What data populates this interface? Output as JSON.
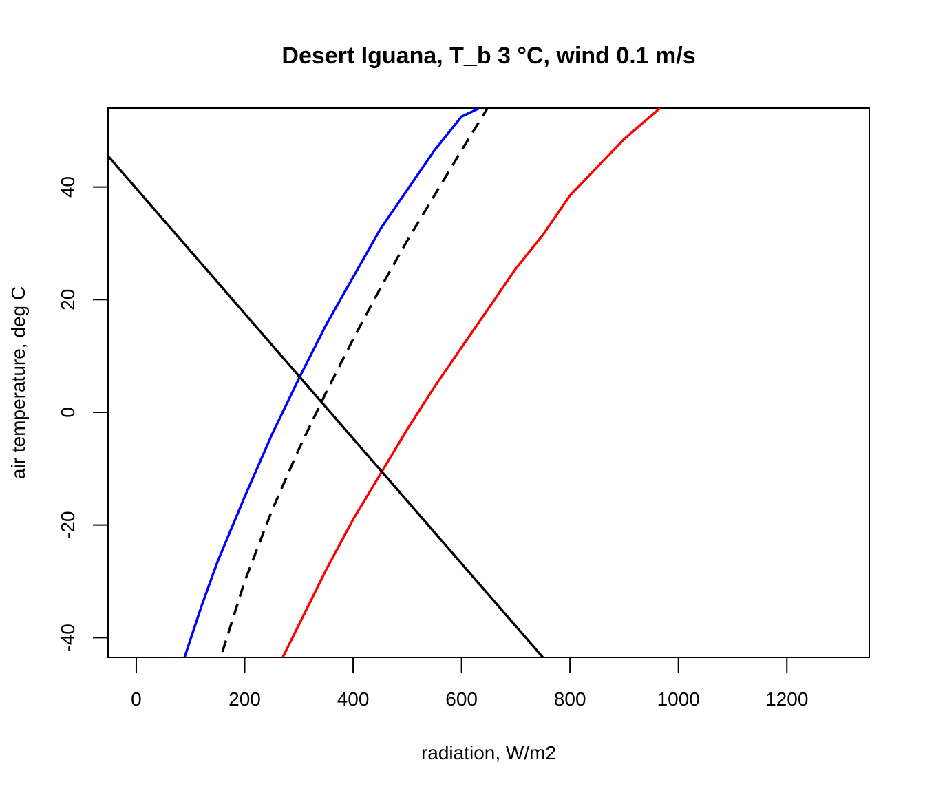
{
  "chart_data": {
    "type": "line",
    "title": "Desert Iguana, T_b 3 °C, wind 0.1 m/s",
    "xlabel": "radiation, W/m2",
    "ylabel": "air temperature, deg C",
    "xlim": [
      -52,
      1352
    ],
    "ylim": [
      -43.5,
      54
    ],
    "x_ticks": [
      0,
      200,
      400,
      600,
      800,
      1000,
      1200
    ],
    "y_ticks": [
      -40,
      -20,
      0,
      20,
      40
    ],
    "x_tick_labels": [
      "0",
      "200",
      "400",
      "600",
      "800",
      "1000",
      "1200"
    ],
    "y_tick_labels": [
      "-40",
      "-20",
      "0",
      "20",
      "40"
    ],
    "grid": false,
    "legend": "none",
    "series": [
      {
        "color": "#0000ff",
        "dash": "solid",
        "x": [
          89,
          120,
          150,
          200,
          250,
          300,
          350,
          400,
          450,
          500,
          550,
          600,
          633
        ],
        "y": [
          -43.5,
          -34.5,
          -26.5,
          -15.0,
          -4.0,
          6.0,
          15.5,
          24.0,
          32.5,
          39.5,
          46.5,
          52.5,
          54.0
        ]
      },
      {
        "color": "#000000",
        "dash": "dashed",
        "x": [
          159,
          200,
          250,
          300,
          350,
          400,
          450,
          500,
          550,
          600,
          648
        ],
        "y": [
          -42.5,
          -30.0,
          -17.5,
          -6.5,
          3.5,
          13.0,
          22.0,
          30.5,
          38.5,
          46.5,
          54.0
        ]
      },
      {
        "color": "#ff0000",
        "dash": "solid",
        "x": [
          270,
          350,
          400,
          450,
          500,
          550,
          600,
          650,
          700,
          750,
          800,
          850,
          900,
          966
        ],
        "y": [
          -43.5,
          -28.0,
          -19.0,
          -11.0,
          -3.0,
          4.5,
          11.5,
          18.5,
          25.5,
          31.5,
          38.5,
          43.5,
          48.5,
          54.0
        ]
      },
      {
        "color": "#000000",
        "dash": "solid",
        "x": [
          -52,
          750
        ],
        "y": [
          45.5,
          -43.5
        ]
      }
    ]
  }
}
